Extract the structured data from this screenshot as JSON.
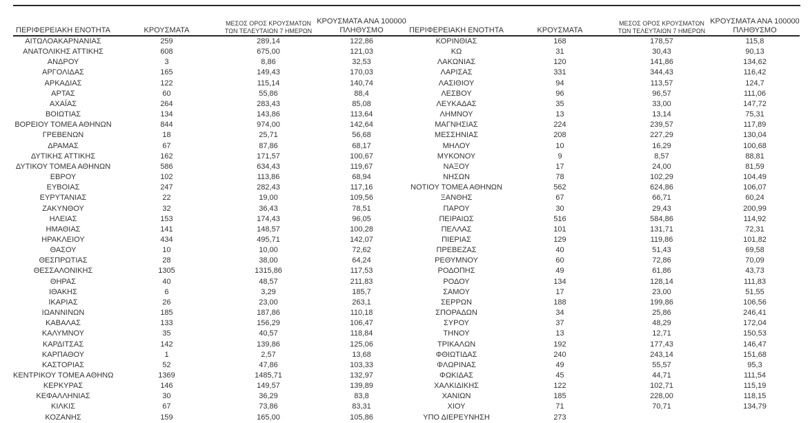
{
  "table_headers": {
    "region": "ΠΕΡΙΦΕΡΕΙΑΚΗ ΕΝΟΤΗΤΑ",
    "cases": "ΚΡΟΥΣΜΑΤΑ",
    "avg7_line1": "ΜΕΣΟΣ ΟΡΟΣ ΚΡΟΥΣΜΑΤΩΝ",
    "avg7_line2": "ΤΩΝ ΤΕΛΕΥΤΑΙΩΝ 7 ΗΜΕΡΩΝ",
    "per100k_line1": "ΚΡΟΥΣΜΑΤΑ ΑΝΑ 100000",
    "per100k_line2": "ΠΛΗΘΥΣΜΟ"
  },
  "left_table": {
    "rows": [
      {
        "region": "ΑΙΤΩΛΟΑΚΑΡΝΑΝΙΑΣ",
        "cases": "259",
        "avg7": "289,14",
        "per100k": "122,86"
      },
      {
        "region": "ΑΝΑΤΟΛΙΚΗΣ ΑΤΤΙΚΗΣ",
        "cases": "608",
        "avg7": "675,00",
        "per100k": "121,03"
      },
      {
        "region": "ΑΝΔΡΟΥ",
        "cases": "3",
        "avg7": "8,86",
        "per100k": "32,53"
      },
      {
        "region": "ΑΡΓΟΛΙΔΑΣ",
        "cases": "165",
        "avg7": "149,43",
        "per100k": "170,03"
      },
      {
        "region": "ΑΡΚΑΔΙΑΣ",
        "cases": "122",
        "avg7": "115,14",
        "per100k": "140,74"
      },
      {
        "region": "ΑΡΤΑΣ",
        "cases": "60",
        "avg7": "55,86",
        "per100k": "88,4"
      },
      {
        "region": "ΑΧΑΪΑΣ",
        "cases": "264",
        "avg7": "283,43",
        "per100k": "85,08"
      },
      {
        "region": "ΒΟΙΩΤΙΑΣ",
        "cases": "134",
        "avg7": "143,86",
        "per100k": "113,64"
      },
      {
        "region": "ΒΟΡΕΙΟΥ ΤΟΜΕΑ ΑΘΗΝΩΝ",
        "cases": "844",
        "avg7": "974,00",
        "per100k": "142,64"
      },
      {
        "region": "ΓΡΕΒΕΝΩΝ",
        "cases": "18",
        "avg7": "25,71",
        "per100k": "56,68"
      },
      {
        "region": "ΔΡΑΜΑΣ",
        "cases": "67",
        "avg7": "87,86",
        "per100k": "68,17"
      },
      {
        "region": "ΔΥΤΙΚΗΣ ΑΤΤΙΚΗΣ",
        "cases": "162",
        "avg7": "171,57",
        "per100k": "100,67"
      },
      {
        "region": "ΔΥΤΙΚΟΥ ΤΟΜΕΑ ΑΘΗΝΩΝ",
        "cases": "586",
        "avg7": "634,43",
        "per100k": "119,67"
      },
      {
        "region": "ΕΒΡΟΥ",
        "cases": "102",
        "avg7": "113,86",
        "per100k": "68,94"
      },
      {
        "region": "ΕΥΒΟΙΑΣ",
        "cases": "247",
        "avg7": "282,43",
        "per100k": "117,16"
      },
      {
        "region": "ΕΥΡΥΤΑΝΙΑΣ",
        "cases": "22",
        "avg7": "19,00",
        "per100k": "109,56"
      },
      {
        "region": "ΖΑΚΥΝΘΟΥ",
        "cases": "32",
        "avg7": "36,43",
        "per100k": "78,51"
      },
      {
        "region": "ΗΛΕΙΑΣ",
        "cases": "153",
        "avg7": "174,43",
        "per100k": "96,05"
      },
      {
        "region": "ΗΜΑΘΙΑΣ",
        "cases": "141",
        "avg7": "148,57",
        "per100k": "100,28"
      },
      {
        "region": "ΗΡΑΚΛΕΙΟΥ",
        "cases": "434",
        "avg7": "495,71",
        "per100k": "142,07"
      },
      {
        "region": "ΘΑΣΟΥ",
        "cases": "10",
        "avg7": "10,00",
        "per100k": "72,62"
      },
      {
        "region": "ΘΕΣΠΡΩΤΙΑΣ",
        "cases": "28",
        "avg7": "38,00",
        "per100k": "64,24"
      },
      {
        "region": "ΘΕΣΣΑΛΟΝΙΚΗΣ",
        "cases": "1305",
        "avg7": "1315,86",
        "per100k": "117,53"
      },
      {
        "region": "ΘΗΡΑΣ",
        "cases": "40",
        "avg7": "48,57",
        "per100k": "211,83"
      },
      {
        "region": "ΙΘΑΚΗΣ",
        "cases": "6",
        "avg7": "3,29",
        "per100k": "185,7"
      },
      {
        "region": "ΙΚΑΡΙΑΣ",
        "cases": "26",
        "avg7": "23,00",
        "per100k": "263,1"
      },
      {
        "region": "ΙΩΑΝΝΙΝΩΝ",
        "cases": "185",
        "avg7": "187,86",
        "per100k": "110,18"
      },
      {
        "region": "ΚΑΒΑΛΑΣ",
        "cases": "133",
        "avg7": "156,29",
        "per100k": "106,47"
      },
      {
        "region": "ΚΑΛΥΜΝΟΥ",
        "cases": "35",
        "avg7": "40,57",
        "per100k": "118,84"
      },
      {
        "region": "ΚΑΡΔΙΤΣΑΣ",
        "cases": "142",
        "avg7": "139,86",
        "per100k": "125,06"
      },
      {
        "region": "ΚΑΡΠΑΘΟΥ",
        "cases": "1",
        "avg7": "2,57",
        "per100k": "13,68"
      },
      {
        "region": "ΚΑΣΤΟΡΙΑΣ",
        "cases": "52",
        "avg7": "47,86",
        "per100k": "103,33"
      },
      {
        "region": "ΚΕΝΤΡΙΚΟΥ ΤΟΜΕΑ ΑΘΗΝΩΝ",
        "cases": "1369",
        "avg7": "1485,71",
        "per100k": "132,97"
      },
      {
        "region": "ΚΕΡΚΥΡΑΣ",
        "cases": "146",
        "avg7": "149,57",
        "per100k": "139,89"
      },
      {
        "region": "ΚΕΦΑΛΛΗΝΙΑΣ",
        "cases": "30",
        "avg7": "36,29",
        "per100k": "83,8"
      },
      {
        "region": "ΚΙΛΚΙΣ",
        "cases": "67",
        "avg7": "73,86",
        "per100k": "83,31"
      },
      {
        "region": "ΚΟΖΑΝΗΣ",
        "cases": "159",
        "avg7": "165,00",
        "per100k": "105,86"
      }
    ]
  },
  "right_table": {
    "rows": [
      {
        "region": "ΚΟΡΙΝΘΙΑΣ",
        "cases": "168",
        "avg7": "178,57",
        "per100k": "115,8"
      },
      {
        "region": "ΚΩ",
        "cases": "31",
        "avg7": "30,43",
        "per100k": "90,13"
      },
      {
        "region": "ΛΑΚΩΝΙΑΣ",
        "cases": "120",
        "avg7": "141,86",
        "per100k": "134,62"
      },
      {
        "region": "ΛΑΡΙΣΑΣ",
        "cases": "331",
        "avg7": "344,43",
        "per100k": "116,42"
      },
      {
        "region": "ΛΑΣΙΘΙΟΥ",
        "cases": "94",
        "avg7": "113,57",
        "per100k": "124,7"
      },
      {
        "region": "ΛΕΣΒΟΥ",
        "cases": "96",
        "avg7": "96,57",
        "per100k": "111,06"
      },
      {
        "region": "ΛΕΥΚΑΔΑΣ",
        "cases": "35",
        "avg7": "33,00",
        "per100k": "147,72"
      },
      {
        "region": "ΛΗΜΝΟΥ",
        "cases": "13",
        "avg7": "13,14",
        "per100k": "75,31"
      },
      {
        "region": "ΜΑΓΝΗΣΙΑΣ",
        "cases": "224",
        "avg7": "239,57",
        "per100k": "117,89"
      },
      {
        "region": "ΜΕΣΣΗΝΙΑΣ",
        "cases": "208",
        "avg7": "227,29",
        "per100k": "130,04"
      },
      {
        "region": "ΜΗΛΟΥ",
        "cases": "10",
        "avg7": "16,29",
        "per100k": "100,68"
      },
      {
        "region": "ΜΥΚΟΝΟΥ",
        "cases": "9",
        "avg7": "8,57",
        "per100k": "88,81"
      },
      {
        "region": "ΝΑΞΟΥ",
        "cases": "17",
        "avg7": "24,00",
        "per100k": "81,59"
      },
      {
        "region": "ΝΗΣΩΝ",
        "cases": "78",
        "avg7": "102,29",
        "per100k": "104,49"
      },
      {
        "region": "ΝΟΤΙΟΥ ΤΟΜΕΑ ΑΘΗΝΩΝ",
        "cases": "562",
        "avg7": "624,86",
        "per100k": "106,07"
      },
      {
        "region": "ΞΑΝΘΗΣ",
        "cases": "67",
        "avg7": "66,71",
        "per100k": "60,24"
      },
      {
        "region": "ΠΑΡΟΥ",
        "cases": "30",
        "avg7": "29,43",
        "per100k": "200,99"
      },
      {
        "region": "ΠΕΙΡΑΙΩΣ",
        "cases": "516",
        "avg7": "584,86",
        "per100k": "114,92"
      },
      {
        "region": "ΠΕΛΛΑΣ",
        "cases": "101",
        "avg7": "131,71",
        "per100k": "72,31"
      },
      {
        "region": "ΠΙΕΡΙΑΣ",
        "cases": "129",
        "avg7": "119,86",
        "per100k": "101,82"
      },
      {
        "region": "ΠΡΕΒΕΖΑΣ",
        "cases": "40",
        "avg7": "51,43",
        "per100k": "69,58"
      },
      {
        "region": "ΡΕΘΥΜΝΟΥ",
        "cases": "60",
        "avg7": "72,86",
        "per100k": "70,09"
      },
      {
        "region": "ΡΟΔΟΠΗΣ",
        "cases": "49",
        "avg7": "61,86",
        "per100k": "43,73"
      },
      {
        "region": "ΡΟΔΟΥ",
        "cases": "134",
        "avg7": "128,14",
        "per100k": "111,83"
      },
      {
        "region": "ΣΑΜΟΥ",
        "cases": "17",
        "avg7": "23,00",
        "per100k": "51,55"
      },
      {
        "region": "ΣΕΡΡΩΝ",
        "cases": "188",
        "avg7": "199,86",
        "per100k": "106,56"
      },
      {
        "region": "ΣΠΟΡΑΔΩΝ",
        "cases": "34",
        "avg7": "25,86",
        "per100k": "246,41"
      },
      {
        "region": "ΣΥΡΟΥ",
        "cases": "37",
        "avg7": "48,29",
        "per100k": "172,04"
      },
      {
        "region": "ΤΗΝΟΥ",
        "cases": "13",
        "avg7": "12,71",
        "per100k": "150,53"
      },
      {
        "region": "ΤΡΙΚΑΛΩΝ",
        "cases": "192",
        "avg7": "177,43",
        "per100k": "146,47"
      },
      {
        "region": "ΦΘΙΩΤΙΔΑΣ",
        "cases": "240",
        "avg7": "243,14",
        "per100k": "151,68"
      },
      {
        "region": "ΦΛΩΡΙΝΑΣ",
        "cases": "49",
        "avg7": "55,57",
        "per100k": "95,3"
      },
      {
        "region": "ΦΩΚΙΔΑΣ",
        "cases": "45",
        "avg7": "44,71",
        "per100k": "111,54"
      },
      {
        "region": "ΧΑΛΚΙΔΙΚΗΣ",
        "cases": "122",
        "avg7": "102,71",
        "per100k": "115,19"
      },
      {
        "region": "ΧΑΝΙΩΝ",
        "cases": "185",
        "avg7": "228,00",
        "per100k": "118,15"
      },
      {
        "region": "ΧΙΟΥ",
        "cases": "71",
        "avg7": "70,71",
        "per100k": "134,79"
      },
      {
        "region": "ΥΠΟ ΔΙΕΡΕΥΝΗΣΗ",
        "cases": "273",
        "avg7": "",
        "per100k": ""
      }
    ]
  }
}
